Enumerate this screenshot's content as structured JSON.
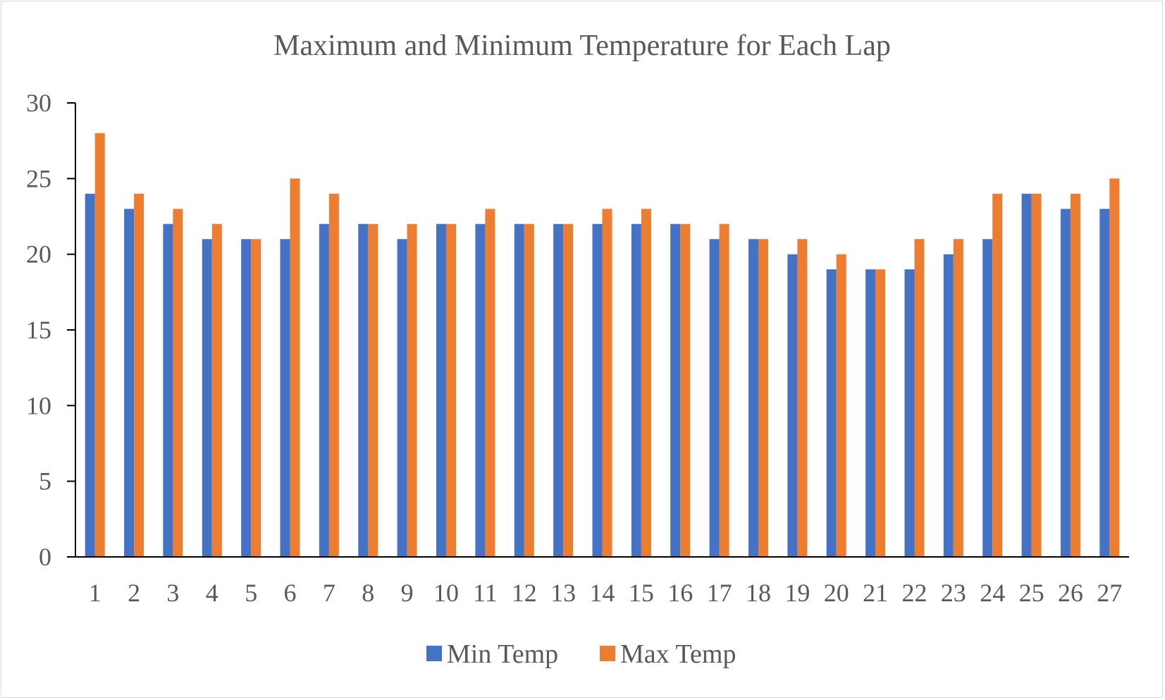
{
  "chart_data": {
    "type": "bar",
    "title": "Maximum and Minimum Temperature for Each Lap",
    "xlabel": "",
    "ylabel": "",
    "categories": [
      "1",
      "2",
      "3",
      "4",
      "5",
      "6",
      "7",
      "8",
      "9",
      "10",
      "11",
      "12",
      "13",
      "14",
      "15",
      "16",
      "17",
      "18",
      "19",
      "20",
      "21",
      "22",
      "23",
      "24",
      "25",
      "26",
      "27"
    ],
    "series": [
      {
        "name": "Min Temp",
        "color": "#4472C4",
        "values": [
          24,
          23,
          22,
          21,
          21,
          21,
          22,
          22,
          21,
          22,
          22,
          22,
          22,
          22,
          22,
          22,
          21,
          21,
          20,
          19,
          19,
          19,
          20,
          21,
          24,
          23,
          23
        ]
      },
      {
        "name": "Max Temp",
        "color": "#ED7D31",
        "values": [
          28,
          24,
          23,
          22,
          21,
          25,
          24,
          22,
          22,
          22,
          23,
          22,
          22,
          23,
          23,
          22,
          22,
          21,
          21,
          20,
          19,
          21,
          21,
          24,
          24,
          24,
          25
        ]
      }
    ],
    "ylim": [
      0,
      30
    ],
    "yticks": [
      "0",
      "5",
      "10",
      "15",
      "20",
      "25",
      "30"
    ],
    "grid": false,
    "legend_position": "bottom"
  }
}
